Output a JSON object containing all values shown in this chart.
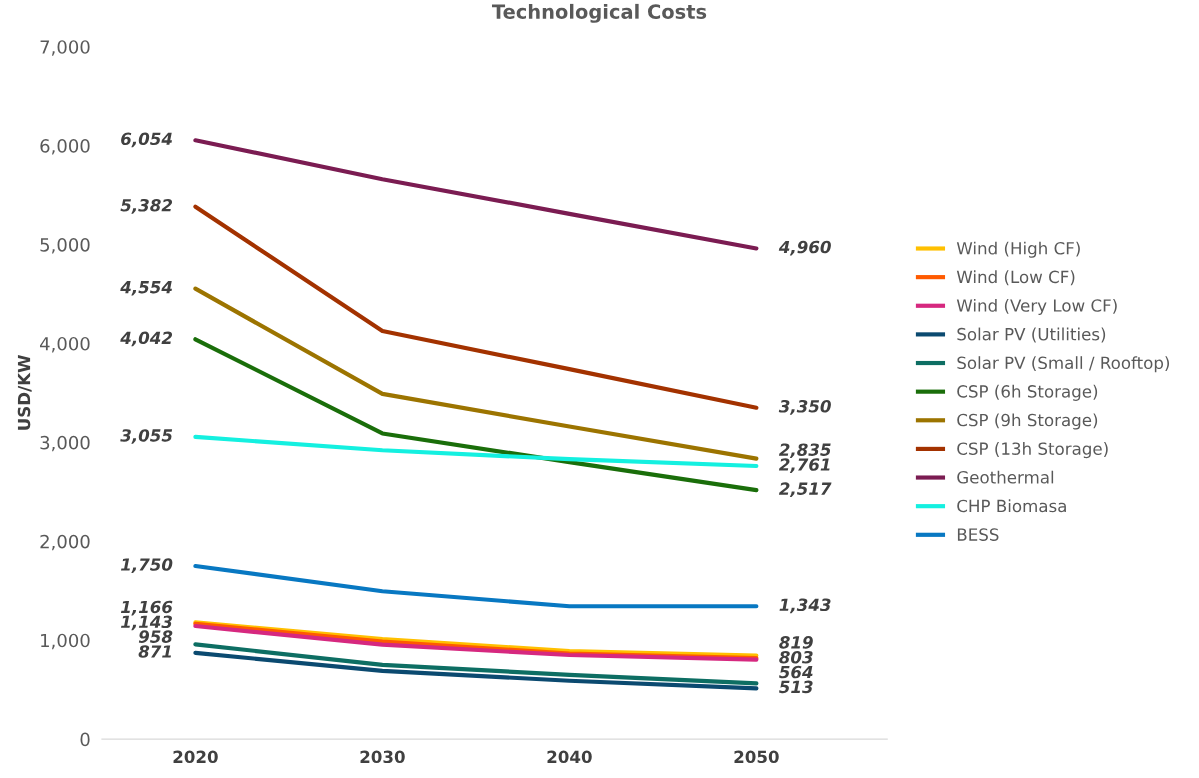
{
  "chart_data": {
    "type": "line",
    "title": "Technological Costs",
    "ylabel": "USD/KW",
    "categories": [
      "2020",
      "2030",
      "2040",
      "2050"
    ],
    "ylim": [
      0,
      7000
    ],
    "yticks": [
      {
        "value": 0,
        "label": "0"
      },
      {
        "value": 1000,
        "label": "1,000"
      },
      {
        "value": 2000,
        "label": "2,000"
      },
      {
        "value": 3000,
        "label": "3,000"
      },
      {
        "value": 4000,
        "label": "4,000"
      },
      {
        "value": 5000,
        "label": "5,000"
      },
      {
        "value": 6000,
        "label": "6,000"
      },
      {
        "value": 7000,
        "label": "7,000"
      }
    ],
    "grid": false,
    "legend": "right",
    "marker": "none",
    "line_style": "solid",
    "series": [
      {
        "name": "Wind (High CF)",
        "color": "#ffc000",
        "values": [
          1180,
          1010,
          890,
          845
        ],
        "value_labels": [
          null,
          null,
          null,
          null
        ]
      },
      {
        "name": "Wind (Low CF)",
        "color": "#ff5a00",
        "values": [
          1166,
          985,
          865,
          819
        ],
        "value_labels": [
          "1,166",
          null,
          null,
          "819"
        ]
      },
      {
        "name": "Wind (Very Low CF)",
        "color": "#d6287f",
        "values": [
          1143,
          955,
          850,
          803
        ],
        "value_labels": [
          "1,143",
          null,
          null,
          "803"
        ]
      },
      {
        "name": "Solar PV (Utilities)",
        "color": "#0b4a70",
        "values": [
          871,
          690,
          590,
          513
        ],
        "value_labels": [
          "871",
          null,
          null,
          "513"
        ]
      },
      {
        "name": "Solar PV (Small / Rooftop)",
        "color": "#0d6e63",
        "values": [
          958,
          750,
          650,
          564
        ],
        "value_labels": [
          "958",
          null,
          null,
          "564"
        ]
      },
      {
        "name": "CSP (6h Storage)",
        "color": "#1a6e0a",
        "values": [
          4042,
          3090,
          2800,
          2517
        ],
        "value_labels": [
          "4,042",
          null,
          null,
          "2,517"
        ]
      },
      {
        "name": "CSP (9h Storage)",
        "color": "#9c7400",
        "values": [
          4554,
          3490,
          3160,
          2835
        ],
        "value_labels": [
          "4,554",
          null,
          null,
          "2,835"
        ]
      },
      {
        "name": "CSP (13h Storage)",
        "color": "#a33200",
        "values": [
          5382,
          4126,
          3740,
          3350
        ],
        "value_labels": [
          "5,382",
          null,
          null,
          "3,350"
        ]
      },
      {
        "name": "Geothermal",
        "color": "#7b1c52",
        "values": [
          6054,
          5660,
          5310,
          4960
        ],
        "value_labels": [
          "6,054",
          null,
          null,
          "4,960"
        ]
      },
      {
        "name": "CHP Biomasa",
        "color": "#14f0e0",
        "values": [
          3055,
          2920,
          2830,
          2761
        ],
        "value_labels": [
          "3,055",
          null,
          null,
          "2,761"
        ]
      },
      {
        "name": "BESS",
        "color": "#0878c2",
        "values": [
          1750,
          1495,
          1343,
          1343
        ],
        "value_labels": [
          "1,750",
          null,
          null,
          "1,343"
        ]
      }
    ]
  }
}
